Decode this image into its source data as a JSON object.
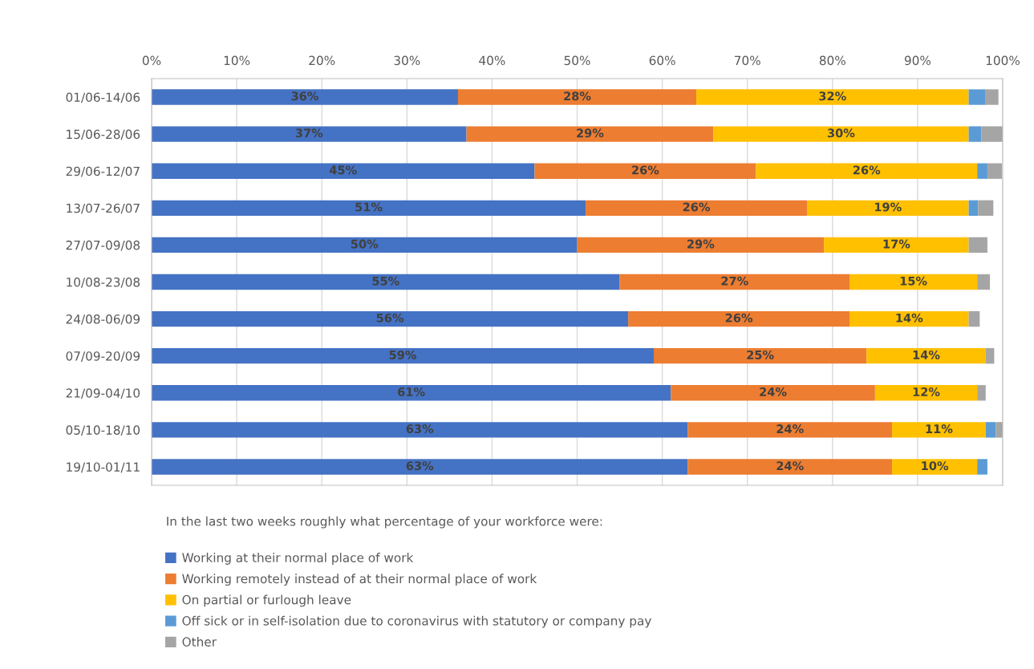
{
  "chart_data": {
    "type": "bar",
    "orientation": "horizontal",
    "stacked": true,
    "categories": [
      "01/06-14/06",
      "15/06-28/06",
      "29/06-12/07",
      "13/07-26/07",
      "27/07-09/08",
      "10/08-23/08",
      "24/08-06/09",
      "07/09-20/09",
      "21/09-04/10",
      "05/10-18/10",
      "19/10-01/11"
    ],
    "series": [
      {
        "name": "Working at their normal place of work",
        "color": "#4472c4",
        "values": [
          36,
          37,
          45,
          51,
          50,
          55,
          56,
          59,
          61,
          63,
          63
        ],
        "value_labels": [
          "36%",
          "37%",
          "45%",
          "51%",
          "50%",
          "55%",
          "56%",
          "59%",
          "61%",
          "63%",
          "63%"
        ]
      },
      {
        "name": "Working remotely instead of at their normal place of work",
        "color": "#ed7d31",
        "values": [
          28,
          29,
          26,
          26,
          29,
          27,
          26,
          25,
          24,
          24,
          24
        ],
        "value_labels": [
          "28%",
          "29%",
          "26%",
          "26%",
          "29%",
          "27%",
          "26%",
          "25%",
          "24%",
          "24%",
          "24%"
        ]
      },
      {
        "name": "On partial or furlough leave",
        "color": "#ffc000",
        "values": [
          32,
          30,
          26,
          19,
          17,
          15,
          14,
          14,
          12,
          11,
          10
        ],
        "value_labels": [
          "32%",
          "30%",
          "26%",
          "19%",
          "17%",
          "15%",
          "14%",
          "14%",
          "12%",
          "11%",
          "10%"
        ]
      },
      {
        "name": "Off sick or in self-isolation due to coronavirus with statutory or company pay",
        "color": "#5b9bd5",
        "values": [
          2,
          1.5,
          1.2,
          1.1,
          0,
          0,
          0,
          0,
          0,
          1.2,
          1.2
        ]
      },
      {
        "name": "Other",
        "color": "#a5a5a5",
        "values": [
          1.5,
          2.5,
          1.7,
          1.8,
          2.2,
          1.5,
          1.3,
          1,
          1,
          0.9,
          0
        ]
      }
    ],
    "xlim": [
      0,
      100
    ],
    "xticks": [
      {
        "value": 0,
        "label": "0%"
      },
      {
        "value": 10,
        "label": "10%"
      },
      {
        "value": 20,
        "label": "20%"
      },
      {
        "value": 30,
        "label": "30%"
      },
      {
        "value": 40,
        "label": "40%"
      },
      {
        "value": 50,
        "label": "50%"
      },
      {
        "value": 60,
        "label": "60%"
      },
      {
        "value": 70,
        "label": "70%"
      },
      {
        "value": 80,
        "label": "80%"
      },
      {
        "value": 90,
        "label": "90%"
      },
      {
        "value": 100,
        "label": "100%"
      }
    ],
    "grid": "x",
    "legend": "bottom",
    "legend_title": "In the last two weeks roughly what percentage of your workforce were:"
  }
}
